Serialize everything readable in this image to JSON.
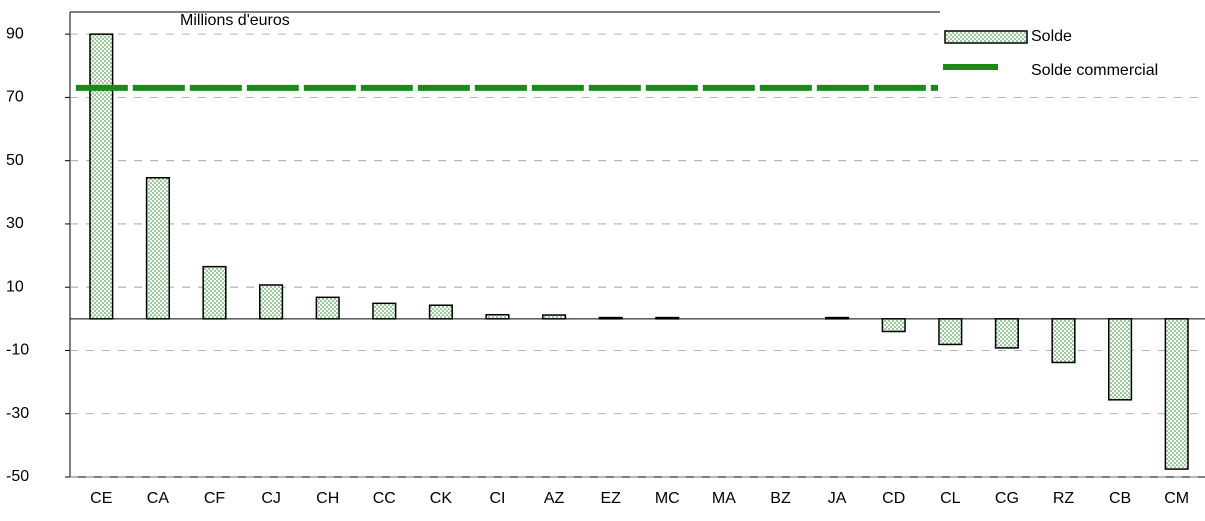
{
  "chart_data": {
    "type": "bar",
    "title": "Millions d'euros",
    "categories": [
      "CE",
      "CA",
      "CF",
      "CJ",
      "CH",
      "CC",
      "CK",
      "CI",
      "AZ",
      "EZ",
      "MC",
      "MA",
      "BZ",
      "JA",
      "CD",
      "CL",
      "CG",
      "RZ",
      "CB",
      "CM"
    ],
    "series": [
      {
        "name": "Solde",
        "type": "bar",
        "color": "#d8eed8",
        "values": [
          90,
          44.6,
          16.5,
          10.7,
          6.8,
          4.9,
          4.3,
          1.3,
          1.2,
          0.4,
          0.4,
          0,
          0,
          0.4,
          -4,
          -8.1,
          -9.2,
          -13.8,
          -25.6,
          -47.5
        ]
      },
      {
        "name": "Solde commercial",
        "type": "line",
        "color": "#1a8a1a",
        "values": [
          73,
          73,
          73,
          73,
          73,
          73,
          73,
          73,
          73,
          73,
          73,
          73,
          73,
          73,
          73,
          73,
          73,
          73,
          73,
          73
        ]
      }
    ],
    "ylim": [
      -50,
      97
    ],
    "yticks": [
      -50,
      -30,
      -10,
      10,
      30,
      50,
      70,
      90
    ],
    "grid": true,
    "legend": "upper right"
  }
}
